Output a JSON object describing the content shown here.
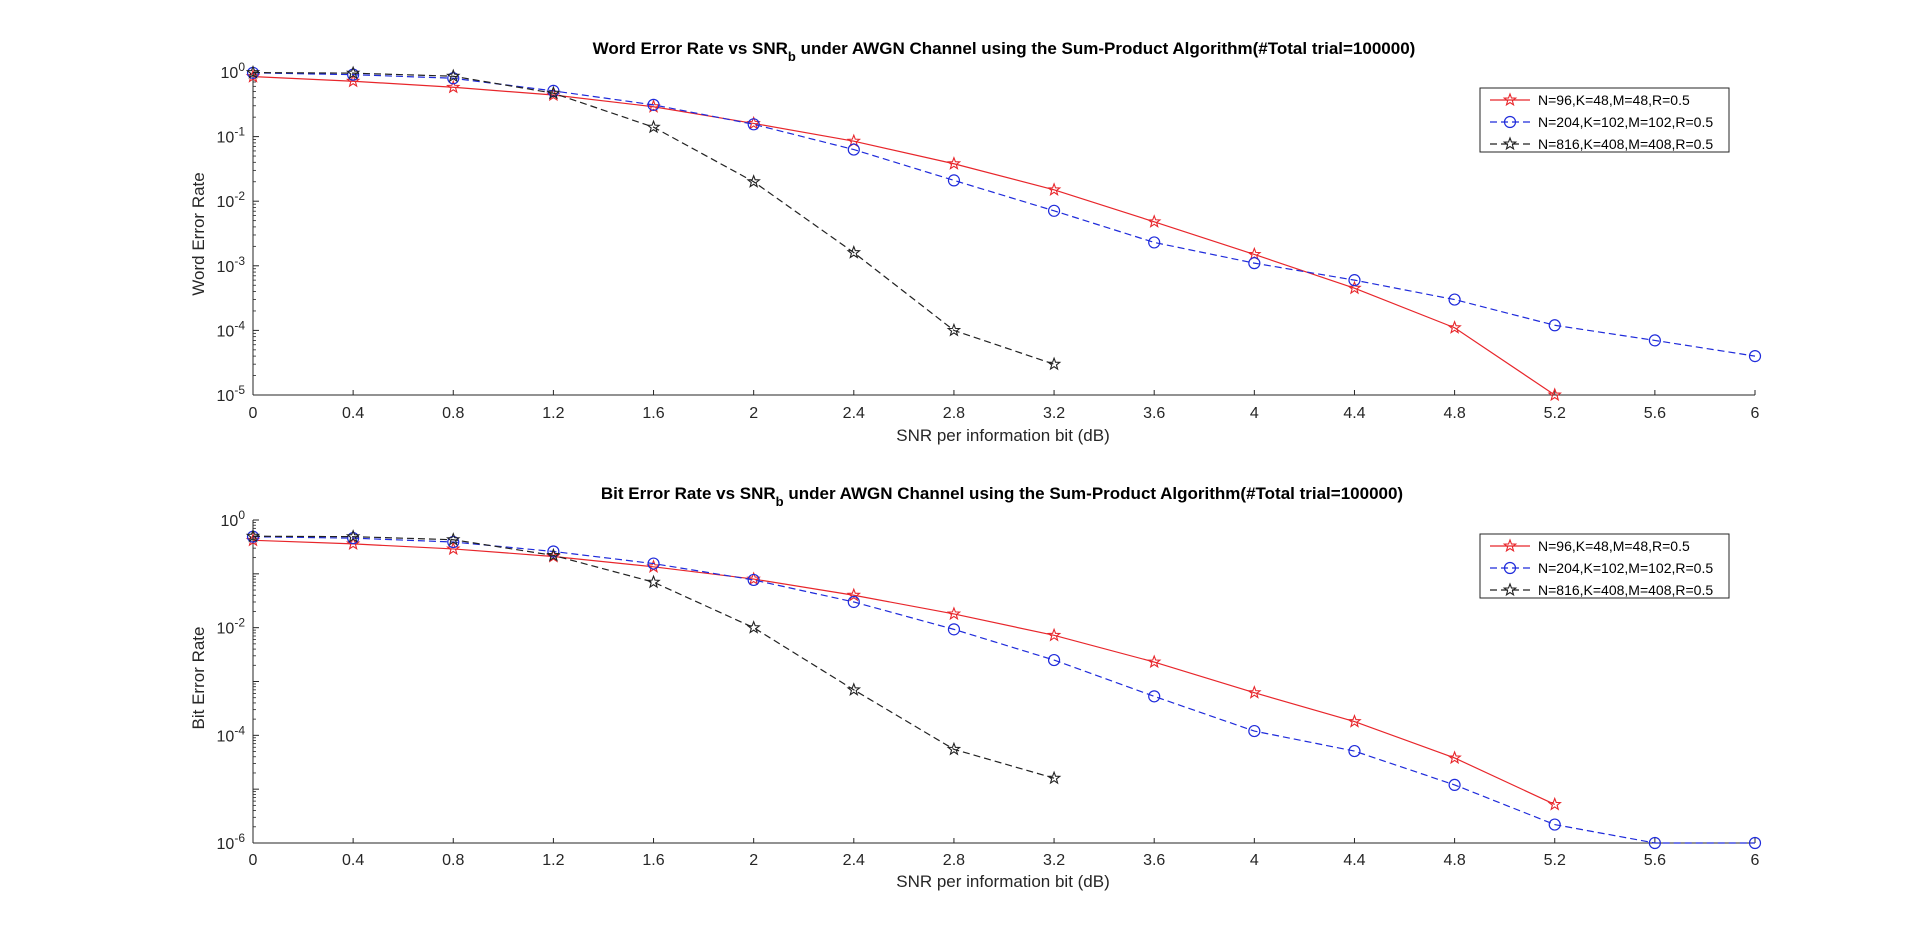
{
  "chart_data": [
    {
      "type": "line",
      "title": "Word Error Rate vs SNR",
      "title_sub": "b",
      "title_suffix": " under AWGN Channel using the Sum-Product Algorithm(#Total trial=100000)",
      "xlabel": "SNR per information bit (dB)",
      "ylabel": "Word Error Rate",
      "yscale": "log",
      "xlim": [
        0,
        6
      ],
      "ylim": [
        1e-05,
        1
      ],
      "x_ticks": [
        "0",
        "0.4",
        "0.8",
        "1.2",
        "1.6",
        "2",
        "2.4",
        "2.8",
        "3.2",
        "3.6",
        "4",
        "4.4",
        "4.8",
        "5.2",
        "5.6",
        "6"
      ],
      "y_ticks": [
        {
          "base": "10",
          "exp": "0",
          "value": 1
        },
        {
          "base": "10",
          "exp": "-1",
          "value": 0.1
        },
        {
          "base": "10",
          "exp": "-2",
          "value": 0.01
        },
        {
          "base": "10",
          "exp": "-3",
          "value": 0.001
        },
        {
          "base": "10",
          "exp": "-4",
          "value": 0.0001
        },
        {
          "base": "10",
          "exp": "-5",
          "value": 1e-05
        }
      ],
      "legend_location": "top-right",
      "grid": false,
      "series": [
        {
          "name": "N=96,K=48,M=48,R=0.5",
          "color": "#e8262b",
          "dash": "solid",
          "marker": "star",
          "x": [
            0,
            0.4,
            0.8,
            1.2,
            1.6,
            2,
            2.4,
            2.8,
            3.2,
            3.6,
            4,
            4.4,
            4.8,
            5.2
          ],
          "y": [
            0.85,
            0.72,
            0.58,
            0.44,
            0.29,
            0.16,
            0.085,
            0.038,
            0.015,
            0.0048,
            0.0015,
            0.00045,
            0.00011,
            1e-05
          ]
        },
        {
          "name": "N=204,K=102,M=102,R=0.5",
          "color": "#1f2bdb",
          "dash": "dashed",
          "marker": "circle",
          "x": [
            0,
            0.4,
            0.8,
            1.2,
            1.6,
            2,
            2.4,
            2.8,
            3.2,
            3.6,
            4,
            4.4,
            4.8,
            5.2,
            5.6,
            6
          ],
          "y": [
            0.97,
            0.91,
            0.8,
            0.51,
            0.31,
            0.155,
            0.063,
            0.021,
            0.0071,
            0.0023,
            0.0011,
            0.0006,
            0.0003,
            0.00012,
            7e-05,
            4e-05
          ]
        },
        {
          "name": "N=816,K=408,M=408,R=0.5",
          "color": "#222222",
          "dash": "dashed",
          "marker": "star",
          "x": [
            0,
            0.4,
            0.8,
            1.2,
            1.6,
            2,
            2.4,
            2.8,
            3.2
          ],
          "y": [
            0.98,
            0.96,
            0.86,
            0.47,
            0.14,
            0.02,
            0.0016,
            0.0001,
            3e-05
          ]
        }
      ]
    },
    {
      "type": "line",
      "title": "Bit Error Rate vs SNR",
      "title_sub": "b",
      "title_suffix": " under AWGN Channel using the Sum-Product Algorithm(#Total trial=100000)",
      "xlabel": "SNR per information bit (dB)",
      "ylabel": "Bit Error Rate",
      "yscale": "log",
      "xlim": [
        0,
        6
      ],
      "ylim": [
        1e-06,
        1
      ],
      "x_ticks": [
        "0",
        "0.4",
        "0.8",
        "1.2",
        "1.6",
        "2",
        "2.4",
        "2.8",
        "3.2",
        "3.6",
        "4",
        "4.4",
        "4.8",
        "5.2",
        "5.6",
        "6"
      ],
      "y_ticks": [
        {
          "base": "10",
          "exp": "0",
          "value": 1
        },
        {
          "base": "10",
          "exp": "-2",
          "value": 0.01
        },
        {
          "base": "10",
          "exp": "-4",
          "value": 0.0001
        },
        {
          "base": "10",
          "exp": "-6",
          "value": 1e-06
        }
      ],
      "legend_location": "top-right",
      "grid": false,
      "series": [
        {
          "name": "N=96,K=48,M=48,R=0.5",
          "color": "#e8262b",
          "dash": "solid",
          "marker": "star",
          "x": [
            0,
            0.4,
            0.8,
            1.2,
            1.6,
            2,
            2.4,
            2.8,
            3.2,
            3.6,
            4,
            4.4,
            4.8,
            5.2
          ],
          "y": [
            0.42,
            0.36,
            0.29,
            0.21,
            0.135,
            0.08,
            0.04,
            0.018,
            0.0072,
            0.0023,
            0.00062,
            0.00018,
            3.8e-05,
            5.2e-06
          ]
        },
        {
          "name": "N=204,K=102,M=102,R=0.5",
          "color": "#1f2bdb",
          "dash": "dashed",
          "marker": "circle",
          "x": [
            0,
            0.4,
            0.8,
            1.2,
            1.6,
            2,
            2.4,
            2.8,
            3.2,
            3.6,
            4,
            4.4,
            4.8,
            5.2,
            5.6,
            6
          ],
          "y": [
            0.49,
            0.46,
            0.39,
            0.26,
            0.155,
            0.077,
            0.03,
            0.0093,
            0.0025,
            0.00053,
            0.00012,
            5.1e-05,
            1.2e-05,
            2.2e-06,
            1e-06,
            1e-06
          ]
        },
        {
          "name": "N=816,K=408,M=408,R=0.5",
          "color": "#222222",
          "dash": "dashed",
          "marker": "star",
          "x": [
            0,
            0.4,
            0.8,
            1.2,
            1.6,
            2,
            2.4,
            2.8,
            3.2
          ],
          "y": [
            0.5,
            0.49,
            0.43,
            0.22,
            0.07,
            0.01,
            0.0007,
            5.5e-05,
            1.6e-05
          ]
        }
      ]
    }
  ]
}
